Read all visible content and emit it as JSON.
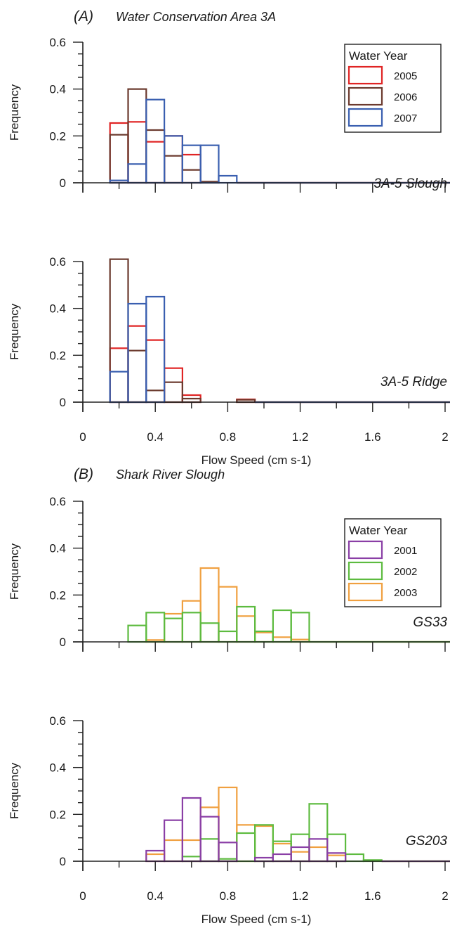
{
  "sections": [
    {
      "label": "(A)",
      "site": "Water Conservation Area 3A"
    },
    {
      "label": "(B)",
      "site": "Shark River Slough"
    }
  ],
  "colors": {
    "2001": "#8a3fa6",
    "2002": "#5dbb3f",
    "2003": "#f0a040",
    "2005": "#e02424",
    "2006": "#6b3a2e",
    "2007": "#3a5fb0"
  },
  "chart_data": [
    {
      "type": "histogram",
      "station": "3A-5 Slough",
      "ylabel": "Frequency",
      "xlabel": "",
      "ylim": [
        0,
        0.6
      ],
      "yticks": [
        "0",
        "0.2",
        "0.4",
        "0.6"
      ],
      "xlim": [
        0,
        2.0
      ],
      "xticks": [
        "0",
        "0.4",
        "0.8",
        "1.2",
        "1.6",
        "2"
      ],
      "bin_edges": [
        0.15,
        0.25,
        0.35,
        0.45,
        0.55,
        0.65,
        0.75,
        0.85
      ],
      "legend": {
        "title": "Water Year",
        "entries": [
          "2005",
          "2006",
          "2007"
        ]
      },
      "series": [
        {
          "name": "2005",
          "values": [
            0.255,
            0.26,
            0.175,
            0.2,
            0.12,
            0.0,
            0.0
          ],
          "tail": 0.002
        },
        {
          "name": "2006",
          "values": [
            0.205,
            0.4,
            0.225,
            0.115,
            0.055,
            0.005,
            0.0
          ],
          "tail": 0.0
        },
        {
          "name": "2007",
          "values": [
            0.01,
            0.08,
            0.355,
            0.2,
            0.16,
            0.16,
            0.03
          ],
          "tail": 0.0
        }
      ]
    },
    {
      "type": "histogram",
      "station": "3A-5 Ridge",
      "ylabel": "Frequency",
      "xlabel": "Flow Speed (cm s-1)",
      "ylim": [
        0,
        0.6
      ],
      "yticks": [
        "0",
        "0.2",
        "0.4",
        "0.6"
      ],
      "xlim": [
        0,
        2.0
      ],
      "xticks": [
        "0",
        "0.4",
        "0.8",
        "1.2",
        "1.6",
        "2"
      ],
      "bin_edges": [
        0.15,
        0.25,
        0.35,
        0.45,
        0.55,
        0.65,
        0.75,
        0.85,
        0.95
      ],
      "series": [
        {
          "name": "2005",
          "values": [
            0.23,
            0.325,
            0.265,
            0.145,
            0.03,
            0.0,
            0.0,
            0.012
          ],
          "tail": 0.003
        },
        {
          "name": "2006",
          "values": [
            0.61,
            0.22,
            0.05,
            0.085,
            0.015,
            0.0,
            0.0,
            0.01
          ],
          "tail": 0.0
        },
        {
          "name": "2007",
          "values": [
            0.13,
            0.42,
            0.45,
            0.0,
            0.0,
            0.0,
            0.0,
            0.0
          ],
          "tail": 0.0
        }
      ]
    },
    {
      "type": "histogram",
      "station": "GS33",
      "ylabel": "Frequency",
      "xlabel": "",
      "ylim": [
        0,
        0.6
      ],
      "yticks": [
        "0",
        "0.2",
        "0.4",
        "0.6"
      ],
      "xlim": [
        0,
        2.0
      ],
      "xticks": [
        "0",
        "0.4",
        "0.8",
        "1.2",
        "1.6",
        "2"
      ],
      "bin_edges": [
        0.25,
        0.35,
        0.45,
        0.55,
        0.65,
        0.75,
        0.85,
        0.95,
        1.05,
        1.15,
        1.25
      ],
      "legend": {
        "title": "Water Year",
        "entries": [
          "2001",
          "2002",
          "2003"
        ]
      },
      "series": [
        {
          "name": "2003",
          "values": [
            0.0,
            0.008,
            0.12,
            0.175,
            0.315,
            0.235,
            0.11,
            0.04,
            0.02,
            0.01
          ],
          "tail": 0.0
        },
        {
          "name": "2002",
          "values": [
            0.07,
            0.125,
            0.1,
            0.125,
            0.08,
            0.045,
            0.15,
            0.045,
            0.135,
            0.125
          ],
          "tail": 0.002
        }
      ]
    },
    {
      "type": "histogram",
      "station": "GS203",
      "ylabel": "Frequency",
      "xlabel": "Flow Speed (cm s-1)",
      "ylim": [
        0,
        0.6
      ],
      "yticks": [
        "0",
        "0.2",
        "0.4",
        "0.6"
      ],
      "xlim": [
        0,
        2.0
      ],
      "xticks": [
        "0",
        "0.4",
        "0.8",
        "1.2",
        "1.6",
        "2"
      ],
      "bin_edges": [
        0.35,
        0.45,
        0.55,
        0.65,
        0.75,
        0.85,
        0.95,
        1.05,
        1.15,
        1.25,
        1.35,
        1.45,
        1.55,
        1.65
      ],
      "series": [
        {
          "name": "2003",
          "values": [
            0.03,
            0.09,
            0.09,
            0.23,
            0.315,
            0.155,
            0.15,
            0.075,
            0.04,
            0.06,
            0.025,
            0.0,
            0.0
          ],
          "tail": 0.0
        },
        {
          "name": "2002",
          "values": [
            0.0,
            0.0,
            0.02,
            0.095,
            0.01,
            0.12,
            0.155,
            0.085,
            0.115,
            0.245,
            0.115,
            0.03,
            0.005
          ],
          "tail": 0.002
        },
        {
          "name": "2001",
          "values": [
            0.045,
            0.175,
            0.27,
            0.19,
            0.08,
            0.0,
            0.015,
            0.03,
            0.06,
            0.095,
            0.035,
            0.0,
            0.0
          ],
          "tail": 0.0
        }
      ]
    }
  ]
}
